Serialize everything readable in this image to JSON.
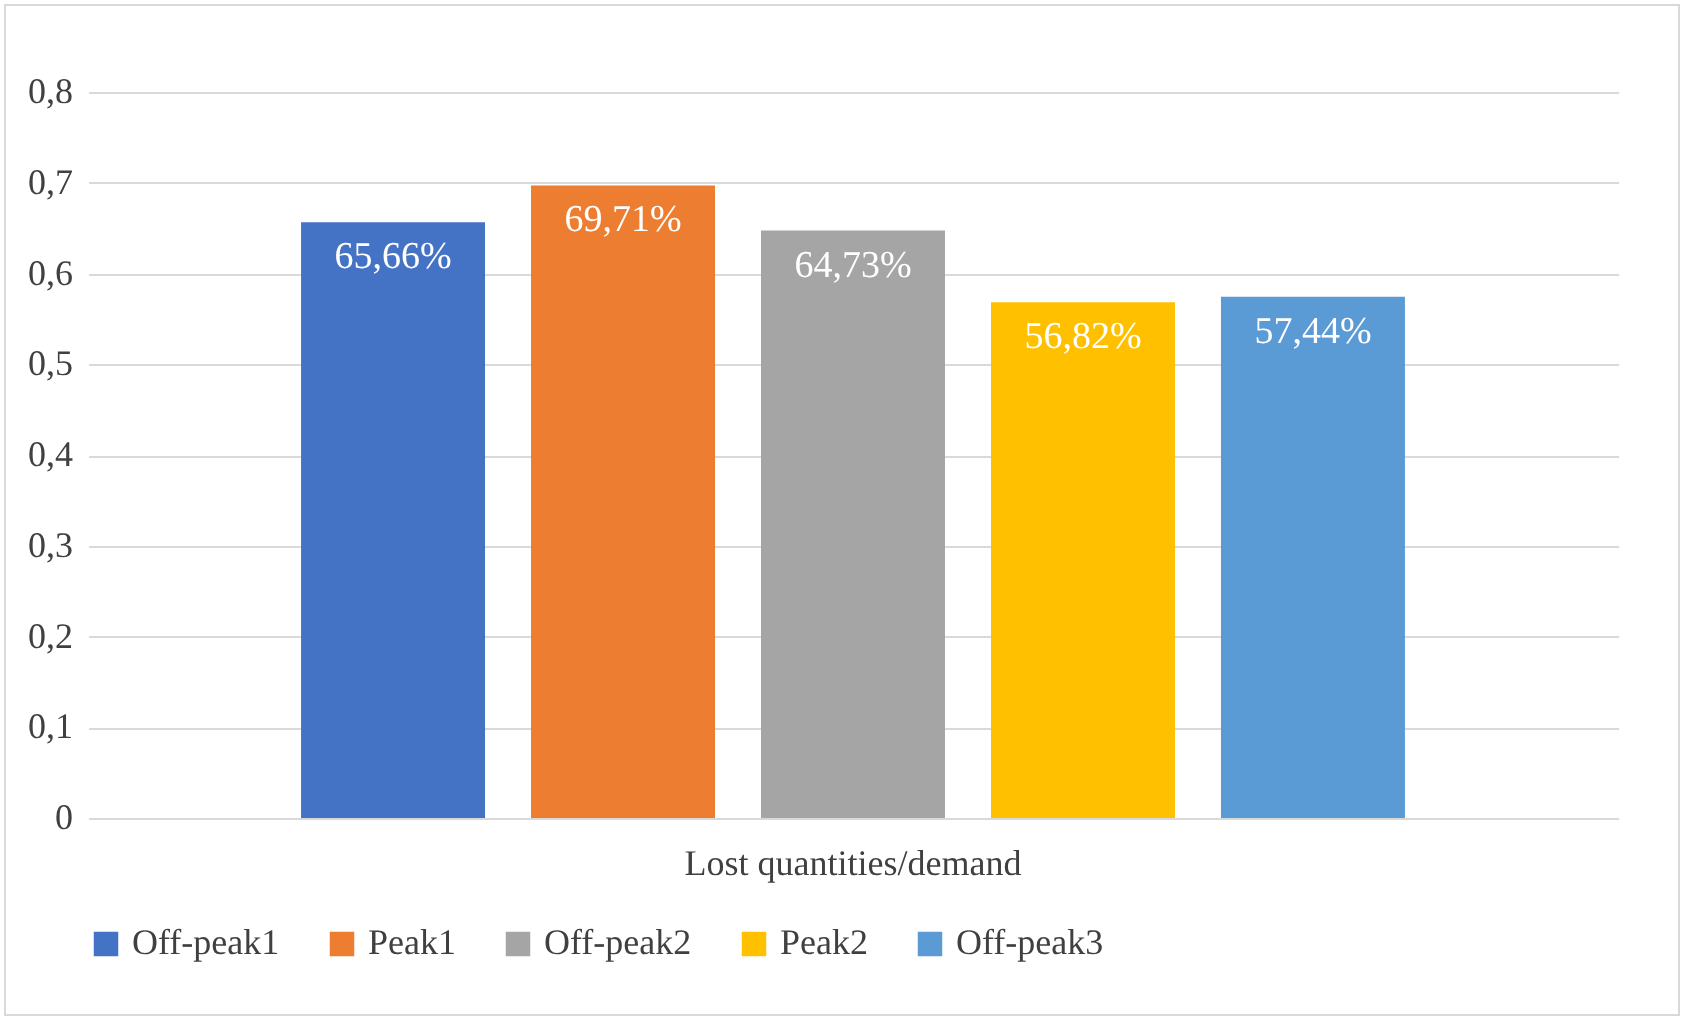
{
  "chart_data": {
    "type": "bar",
    "categories": [
      "Lost quantities/demand"
    ],
    "series": [
      {
        "name": "Off-peak1",
        "color": "#4472c4",
        "values": [
          0.6566
        ],
        "value_labels": [
          "65,66%"
        ]
      },
      {
        "name": "Peak1",
        "color": "#ed7d31",
        "values": [
          0.6971
        ],
        "value_labels": [
          "69,71%"
        ]
      },
      {
        "name": "Off-peak2",
        "color": "#a5a5a5",
        "values": [
          0.6473
        ],
        "value_labels": [
          "64,73%"
        ]
      },
      {
        "name": "Peak2",
        "color": "#ffc000",
        "values": [
          0.5682
        ],
        "value_labels": [
          "56,82%"
        ]
      },
      {
        "name": "Off-peak3",
        "color": "#5b9bd5",
        "values": [
          0.5744
        ],
        "value_labels": [
          "57,44%"
        ]
      }
    ],
    "ylim": [
      0,
      0.8
    ],
    "yticks": [
      {
        "value": 0,
        "label": "0"
      },
      {
        "value": 0.1,
        "label": "0,1"
      },
      {
        "value": 0.2,
        "label": "0,2"
      },
      {
        "value": 0.3,
        "label": "0,3"
      },
      {
        "value": 0.4,
        "label": "0,4"
      },
      {
        "value": 0.5,
        "label": "0,5"
      },
      {
        "value": 0.6,
        "label": "0,6"
      },
      {
        "value": 0.7,
        "label": "0,7"
      },
      {
        "value": 0.8,
        "label": "0,8"
      }
    ],
    "grid": "y",
    "legend": "bottom"
  }
}
